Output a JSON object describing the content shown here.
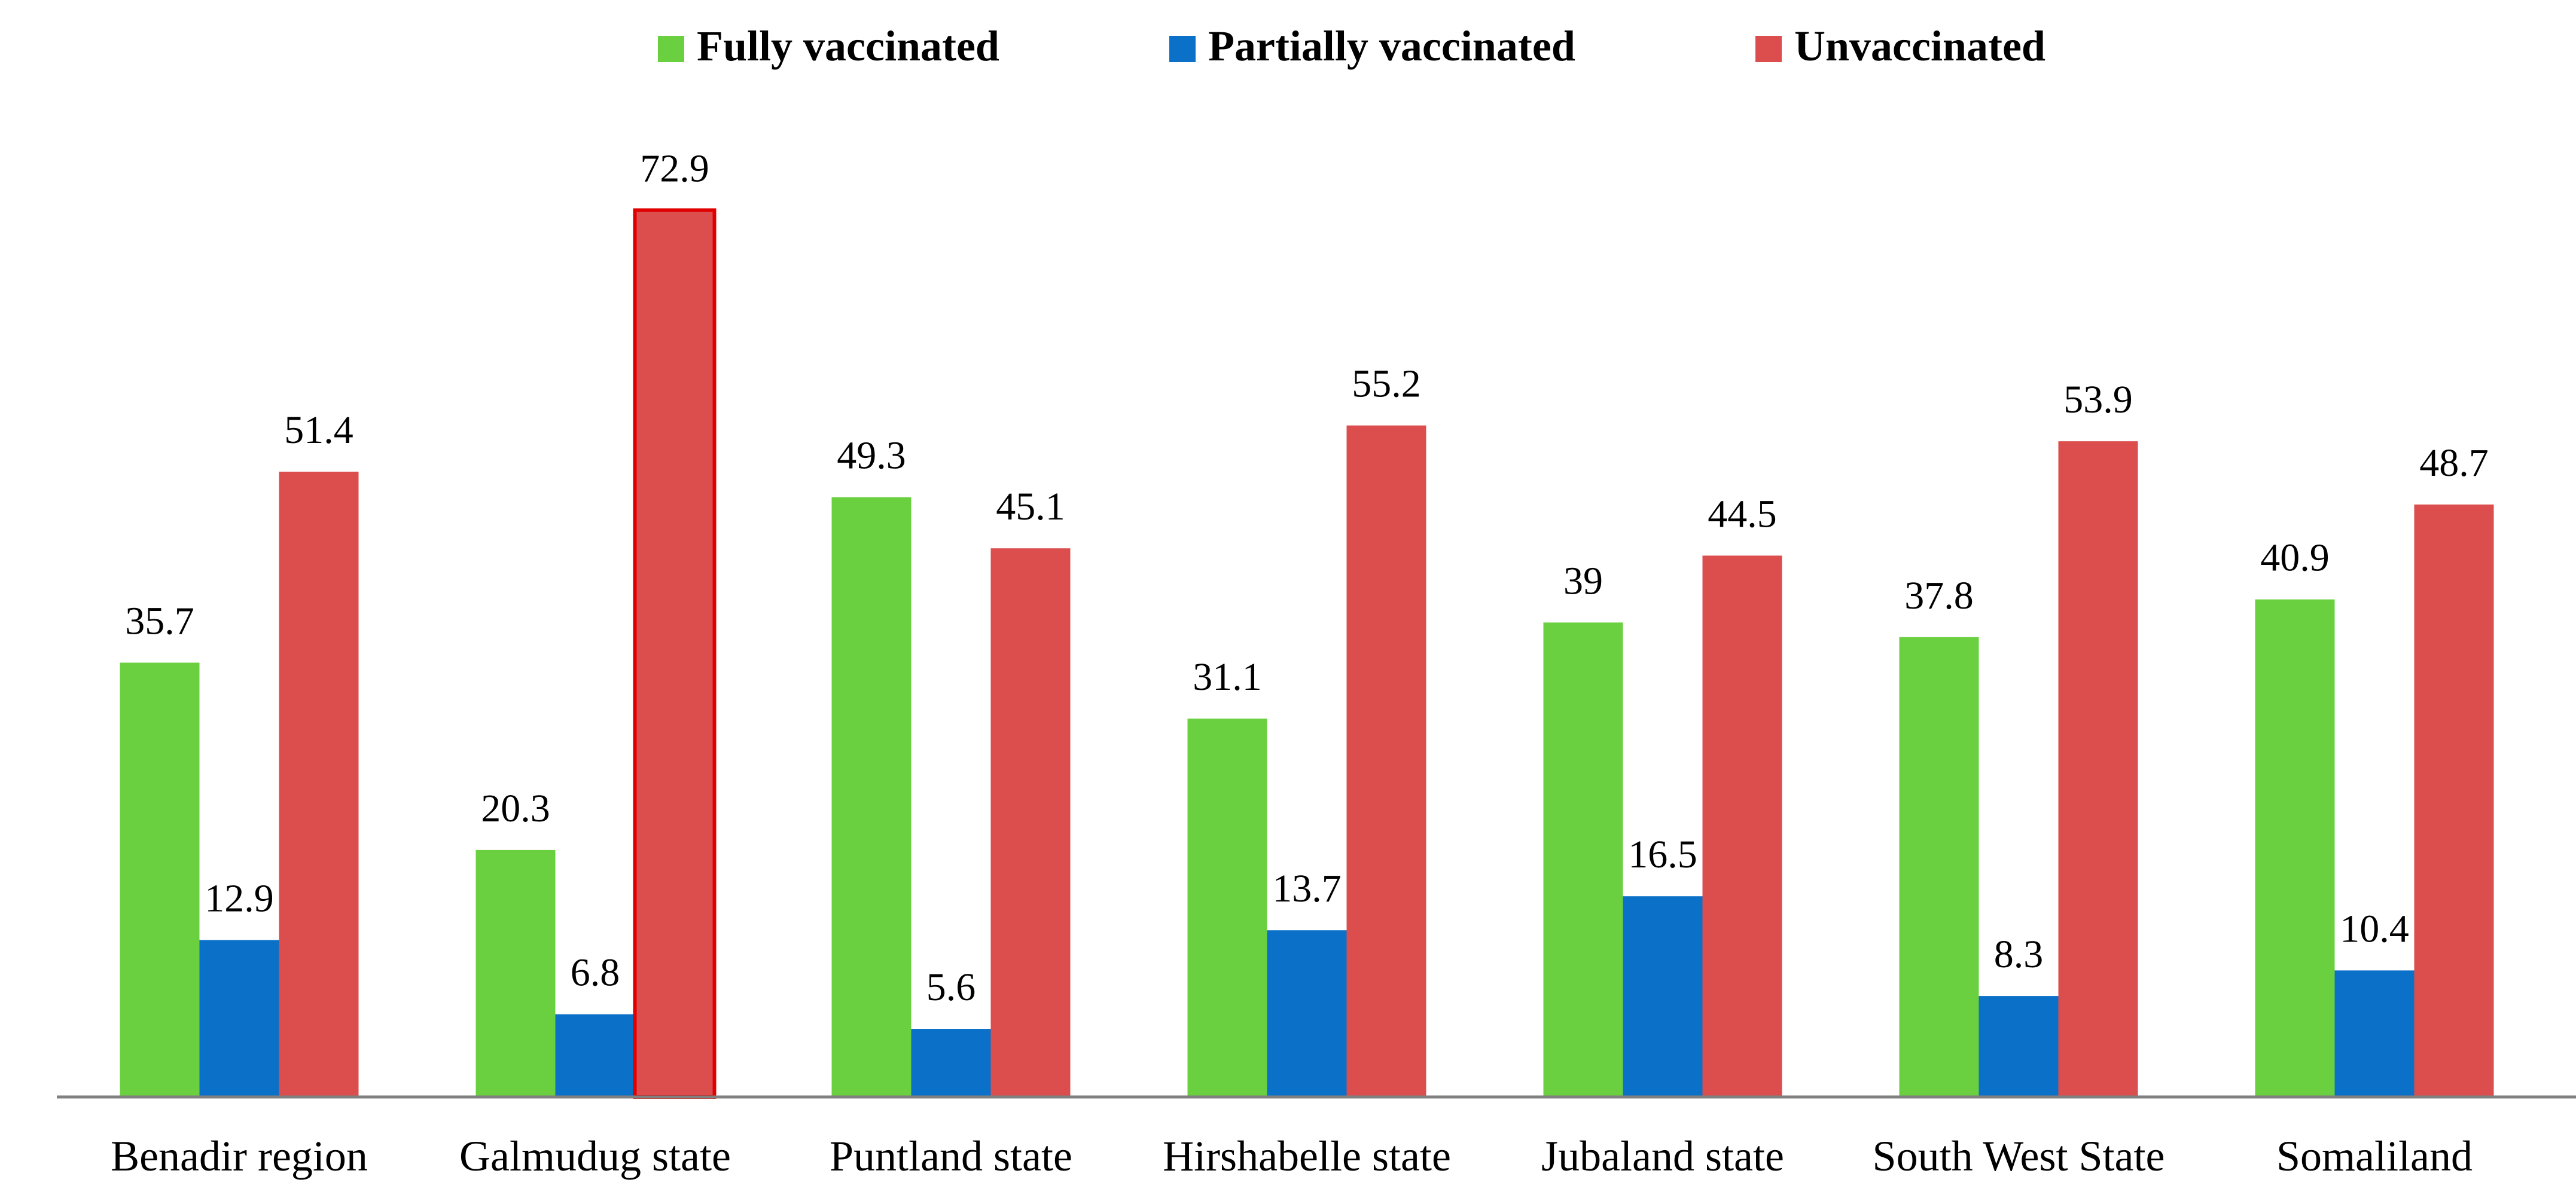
{
  "chart_data": {
    "type": "bar",
    "title": "",
    "xlabel": "",
    "ylabel": "",
    "ylim": [
      0,
      75
    ],
    "grid": false,
    "legend_position": "top-center",
    "categories": [
      "Benadir region",
      "Galmudug state",
      "Puntland state",
      "Hirshabelle state",
      "Jubaland state",
      "South West State",
      "Somaliland"
    ],
    "series": [
      {
        "name": "Fully vaccinated",
        "color": "#6ad040",
        "values": [
          35.7,
          20.3,
          49.3,
          31.1,
          39,
          37.8,
          40.9
        ],
        "labels": [
          "35.7",
          "20.3",
          "49.3",
          "31.1",
          "39",
          "37.8",
          "40.9"
        ]
      },
      {
        "name": "Partially vaccinated",
        "color": "#0a70c8",
        "values": [
          12.9,
          6.8,
          5.6,
          13.7,
          16.5,
          8.3,
          10.4
        ],
        "labels": [
          "12.9",
          "6.8",
          "5.6",
          "13.7",
          "16.5",
          "8.3",
          "10.4"
        ]
      },
      {
        "name": "Unvaccinated",
        "color": "#dc4e4e",
        "values": [
          51.4,
          72.9,
          45.1,
          55.2,
          44.5,
          53.9,
          48.7
        ],
        "labels": [
          "51.4",
          "72.9",
          "45.1",
          "55.2",
          "44.5",
          "53.9",
          "48.7"
        ]
      }
    ],
    "highlight": {
      "series": 2,
      "category": 1,
      "outline_color": "#e00000"
    },
    "axis_color": "#808080"
  }
}
